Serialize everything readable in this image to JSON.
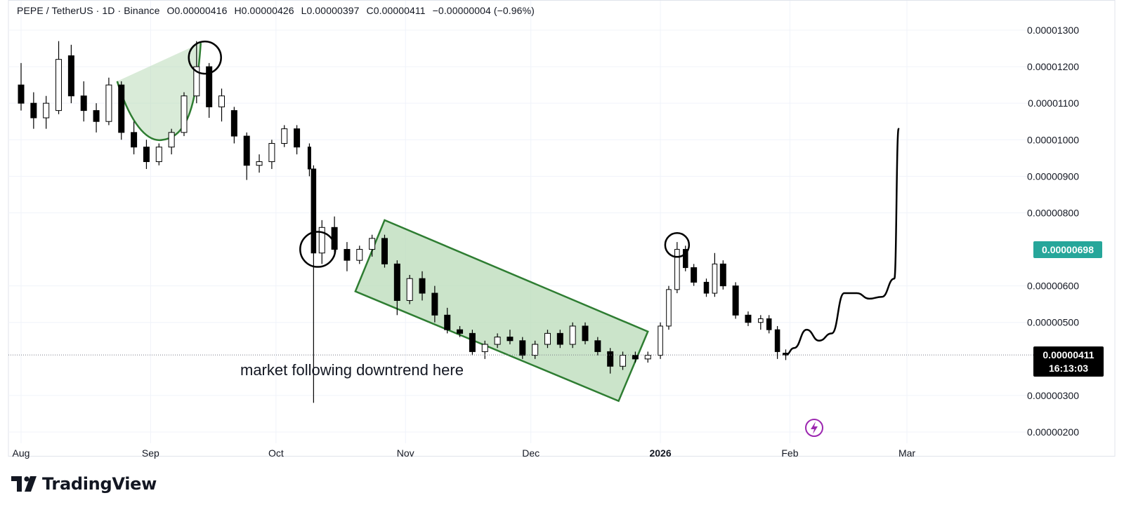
{
  "header": {
    "symbol": "PEPE / TetherUS · 1D · Binance",
    "open": "O0.00000416",
    "high": "H0.00000426",
    "low": "L0.00000397",
    "close": "C0.00000411",
    "change": "−0.00000004 (−0.96%)"
  },
  "brand": {
    "name": "TradingView"
  },
  "colors": {
    "up_candle_fill": "#ffffff",
    "down_candle_fill": "#000000",
    "candle_border": "#000000",
    "shape_fill": "#b9dbb8",
    "shape_stroke": "#2e7d32",
    "cursor_label_bg": "#26a69a",
    "price_label_bg": "#000000",
    "lightning_icon": "#9c27b0"
  },
  "chart_data": {
    "type": "candlestick",
    "title": "PEPE / TetherUS · 1D · Binance",
    "y_axis": {
      "ticks": [
        "0.00001300",
        "0.00001200",
        "0.00001100",
        "0.00001000",
        "0.00000900",
        "0.00000800",
        "0.00000600",
        "0.00000500",
        "0.00000300",
        "0.00000200"
      ],
      "range": [
        1.75e-06,
        1.335e-05
      ],
      "scale": "linear"
    },
    "x_axis": {
      "ticks": [
        "Aug",
        "Sep",
        "Oct",
        "Nov",
        "Dec",
        "2026",
        "Feb",
        "Mar"
      ],
      "range": [
        "2025-08-01",
        "2026-03-11"
      ]
    },
    "series": [
      {
        "type": "candlestick",
        "ohlc_columns": [
          "date",
          "open",
          "high",
          "low",
          "close"
        ],
        "ohlc": [
          [
            "2025-08-01",
            1.15e-05,
            1.21e-05,
            1.08e-05,
            1.1e-05
          ],
          [
            "2025-08-04",
            1.1e-05,
            1.13e-05,
            1.03e-05,
            1.06e-05
          ],
          [
            "2025-08-07",
            1.06e-05,
            1.12e-05,
            1.03e-05,
            1.1e-05
          ],
          [
            "2025-08-10",
            1.08e-05,
            1.27e-05,
            1.07e-05,
            1.22e-05
          ],
          [
            "2025-08-13",
            1.23e-05,
            1.26e-05,
            1.1e-05,
            1.12e-05
          ],
          [
            "2025-08-16",
            1.12e-05,
            1.16e-05,
            1.05e-05,
            1.08e-05
          ],
          [
            "2025-08-19",
            1.08e-05,
            1.1e-05,
            1.02e-05,
            1.05e-05
          ],
          [
            "2025-08-22",
            1.05e-05,
            1.17e-05,
            1.04e-05,
            1.15e-05
          ],
          [
            "2025-08-25",
            1.15e-05,
            1.16e-05,
            1e-05,
            1.02e-05
          ],
          [
            "2025-08-28",
            1.02e-05,
            1.05e-05,
            9.6e-06,
            9.8e-06
          ],
          [
            "2025-08-31",
            9.8e-06,
            1e-05,
            9.2e-06,
            9.4e-06
          ],
          [
            "2025-09-03",
            9.4e-06,
            9.9e-06,
            9.3e-06,
            9.8e-06
          ],
          [
            "2025-09-06",
            9.8e-06,
            1.03e-05,
            9.6e-06,
            1.02e-05
          ],
          [
            "2025-09-09",
            1.02e-05,
            1.13e-05,
            1.01e-05,
            1.12e-05
          ],
          [
            "2025-09-12",
            1.12e-05,
            1.27e-05,
            1.1e-05,
            1.2e-05
          ],
          [
            "2025-09-15",
            1.2e-05,
            1.21e-05,
            1.06e-05,
            1.09e-05
          ],
          [
            "2025-09-18",
            1.09e-05,
            1.14e-05,
            1.05e-05,
            1.12e-05
          ],
          [
            "2025-09-21",
            1.08e-05,
            1.09e-05,
            9.9e-06,
            1.01e-05
          ],
          [
            "2025-09-24",
            1.01e-05,
            1.02e-05,
            8.9e-06,
            9.3e-06
          ],
          [
            "2025-09-27",
            9.3e-06,
            9.6e-06,
            9.1e-06,
            9.4e-06
          ],
          [
            "2025-09-30",
            9.4e-06,
            1e-05,
            9.2e-06,
            9.9e-06
          ],
          [
            "2025-10-03",
            9.9e-06,
            1.04e-05,
            9.8e-06,
            1.03e-05
          ],
          [
            "2025-10-06",
            1.03e-05,
            1.04e-05,
            9.6e-06,
            9.8e-06
          ],
          [
            "2025-10-09",
            9.8e-06,
            9.9e-06,
            9e-06,
            9.2e-06
          ],
          [
            "2025-10-10",
            9.2e-06,
            9.3e-06,
            2.8e-06,
            6.9e-06
          ],
          [
            "2025-10-12",
            6.9e-06,
            7.8e-06,
            6.6e-06,
            7.6e-06
          ],
          [
            "2025-10-15",
            7.6e-06,
            7.9e-06,
            6.8e-06,
            7e-06
          ],
          [
            "2025-10-18",
            7e-06,
            7.2e-06,
            6.4e-06,
            6.7e-06
          ],
          [
            "2025-10-21",
            6.7e-06,
            7.1e-06,
            6.6e-06,
            7e-06
          ],
          [
            "2025-10-24",
            7e-06,
            7.4e-06,
            6.8e-06,
            7.3e-06
          ],
          [
            "2025-10-27",
            7.3e-06,
            7.4e-06,
            6.5e-06,
            6.6e-06
          ],
          [
            "2025-10-30",
            6.6e-06,
            6.7e-06,
            5.2e-06,
            5.6e-06
          ],
          [
            "2025-11-02",
            5.6e-06,
            6.3e-06,
            5.5e-06,
            6.2e-06
          ],
          [
            "2025-11-05",
            6.2e-06,
            6.4e-06,
            5.6e-06,
            5.8e-06
          ],
          [
            "2025-11-08",
            5.8e-06,
            6e-06,
            5e-06,
            5.2e-06
          ],
          [
            "2025-11-11",
            5.2e-06,
            5.4e-06,
            4.7e-06,
            4.8e-06
          ],
          [
            "2025-11-14",
            4.8e-06,
            4.9e-06,
            4.6e-06,
            4.7e-06
          ],
          [
            "2025-11-17",
            4.7e-06,
            4.8e-06,
            4.1e-06,
            4.2e-06
          ],
          [
            "2025-11-20",
            4.2e-06,
            4.5e-06,
            4e-06,
            4.4e-06
          ],
          [
            "2025-11-23",
            4.4e-06,
            4.7e-06,
            4.3e-06,
            4.6e-06
          ],
          [
            "2025-11-26",
            4.6e-06,
            4.8e-06,
            4.4e-06,
            4.5e-06
          ],
          [
            "2025-11-29",
            4.5e-06,
            4.6e-06,
            4e-06,
            4.1e-06
          ],
          [
            "2025-12-02",
            4.1e-06,
            4.5e-06,
            4e-06,
            4.4e-06
          ],
          [
            "2025-12-05",
            4.4e-06,
            4.8e-06,
            4.3e-06,
            4.7e-06
          ],
          [
            "2025-12-08",
            4.7e-06,
            4.8e-06,
            4.3e-06,
            4.4e-06
          ],
          [
            "2025-12-11",
            4.4e-06,
            5e-06,
            4.3e-06,
            4.9e-06
          ],
          [
            "2025-12-14",
            4.9e-06,
            5e-06,
            4.4e-06,
            4.5e-06
          ],
          [
            "2025-12-17",
            4.5e-06,
            4.6e-06,
            4.1e-06,
            4.2e-06
          ],
          [
            "2025-12-20",
            4.2e-06,
            4.3e-06,
            3.6e-06,
            3.8e-06
          ],
          [
            "2025-12-23",
            3.8e-06,
            4.2e-06,
            3.7e-06,
            4.1e-06
          ],
          [
            "2025-12-26",
            4.1e-06,
            4.2e-06,
            3.9e-06,
            4e-06
          ],
          [
            "2025-12-29",
            4e-06,
            4.2e-06,
            3.9e-06,
            4.1e-06
          ],
          [
            "2026-01-01",
            4.1e-06,
            5e-06,
            4e-06,
            4.9e-06
          ],
          [
            "2026-01-03",
            4.9e-06,
            6e-06,
            4.8e-06,
            5.9e-06
          ],
          [
            "2026-01-05",
            5.9e-06,
            7.2e-06,
            5.8e-06,
            7e-06
          ],
          [
            "2026-01-07",
            7e-06,
            7.1e-06,
            6.4e-06,
            6.5e-06
          ],
          [
            "2026-01-09",
            6.5e-06,
            6.6e-06,
            6e-06,
            6.1e-06
          ],
          [
            "2026-01-12",
            6.1e-06,
            6.2e-06,
            5.7e-06,
            5.8e-06
          ],
          [
            "2026-01-14",
            5.8e-06,
            6.9e-06,
            5.7e-06,
            6.6e-06
          ],
          [
            "2026-01-16",
            6.6e-06,
            6.7e-06,
            5.9e-06,
            6e-06
          ],
          [
            "2026-01-19",
            6e-06,
            6.1e-06,
            5.1e-06,
            5.2e-06
          ],
          [
            "2026-01-22",
            5.2e-06,
            5.3e-06,
            4.9e-06,
            5e-06
          ],
          [
            "2026-01-25",
            5e-06,
            5.2e-06,
            4.8e-06,
            5.1e-06
          ],
          [
            "2026-01-27",
            5.1e-06,
            5.2e-06,
            4.7e-06,
            4.8e-06
          ],
          [
            "2026-01-29",
            4.8e-06,
            4.9e-06,
            4e-06,
            4.2e-06
          ],
          [
            "2026-01-31",
            4.16e-06,
            4.26e-06,
            3.97e-06,
            4.11e-06
          ]
        ]
      },
      {
        "type": "line",
        "x": [
          "2026-01-31",
          "2026-02-02",
          "2026-02-05",
          "2026-02-08",
          "2026-02-11",
          "2026-02-14",
          "2026-02-17",
          "2026-02-20",
          "2026-02-23",
          "2026-02-26",
          "2026-02-27"
        ],
        "y": [
          4.11e-06,
          4.3e-06,
          4.8e-06,
          4.5e-06,
          4.7e-06,
          5.8e-06,
          5.8e-06,
          5.65e-06,
          5.7e-06,
          6.2e-06,
          1.03e-05
        ]
      }
    ],
    "annotations": {
      "text": "market following downtrend here",
      "current_price": "0.00000411",
      "countdown": "16:13:03",
      "cursor_price": "0.00000698"
    }
  }
}
